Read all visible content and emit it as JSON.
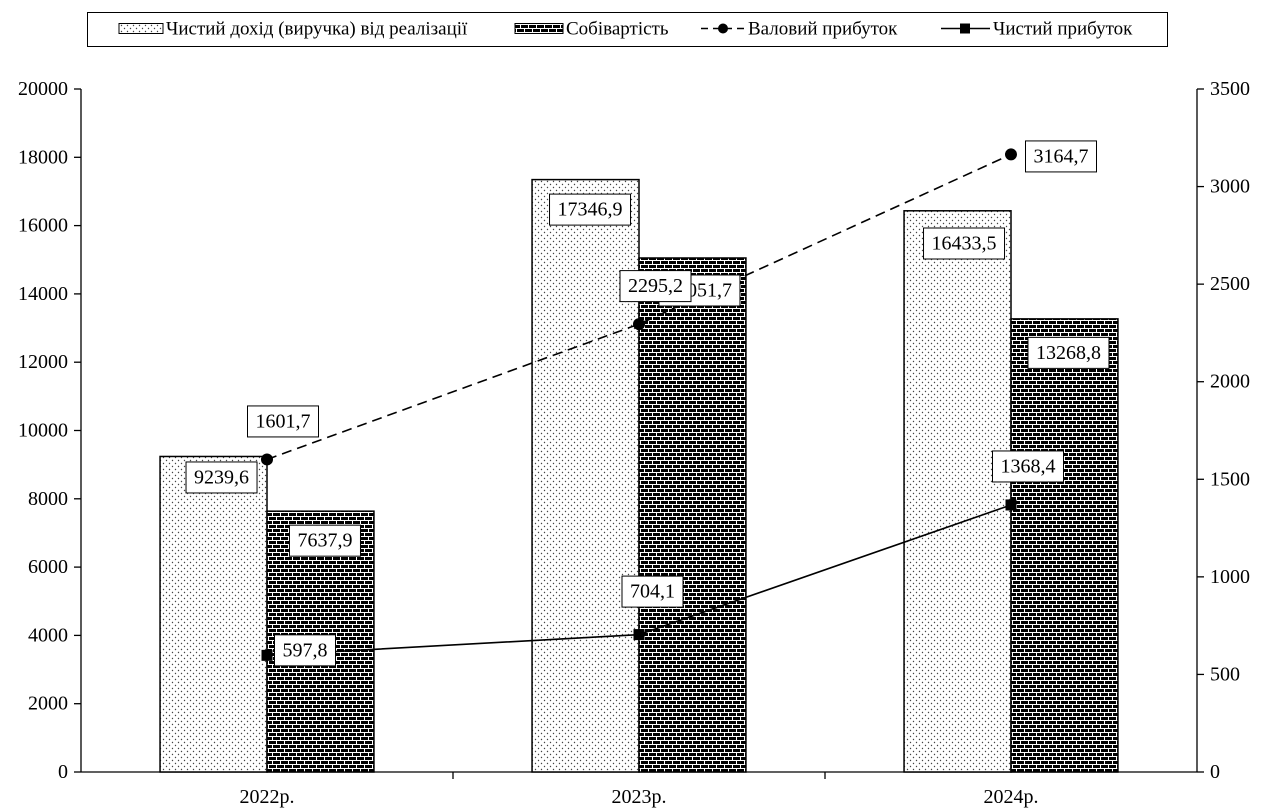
{
  "chart_data": {
    "type": "bar",
    "categories": [
      "2022р.",
      "2023р.",
      "2024р."
    ],
    "series": [
      {
        "name": "Чистий дохід (виручка) від реалізації",
        "type": "bar",
        "y_axis": "left",
        "fill_pattern": "dotted",
        "values": [
          9239.6,
          17346.9,
          16433.5
        ],
        "data_labels": [
          "9239,6",
          "17346,9",
          "16433,5"
        ]
      },
      {
        "name": "Собівартість",
        "type": "bar",
        "y_axis": "left",
        "fill_pattern": "brick",
        "values": [
          7637.9,
          15051.7,
          13268.8
        ],
        "data_labels": [
          "7637,9",
          "15051,7",
          "13268,8"
        ]
      },
      {
        "name": "Валовий прибуток",
        "type": "line",
        "y_axis": "right",
        "line_style": "dashed",
        "marker": "circle",
        "values": [
          1601.7,
          2295.2,
          3164.7
        ],
        "data_labels": [
          "1601,7",
          "2295,2",
          "3164,7"
        ]
      },
      {
        "name": "Чистий прибуток",
        "type": "line",
        "y_axis": "right",
        "line_style": "solid",
        "marker": "square",
        "values": [
          597.8,
          704.1,
          1368.4
        ],
        "data_labels": [
          "597,8",
          "704,1",
          "1368,4"
        ]
      }
    ],
    "y_left": {
      "min": 0,
      "max": 20000,
      "step": 2000,
      "tick_labels": [
        "0",
        "2000",
        "4000",
        "6000",
        "8000",
        "10000",
        "12000",
        "14000",
        "16000",
        "18000",
        "20000"
      ]
    },
    "y_right": {
      "min": 0,
      "max": 3500,
      "step": 500,
      "tick_labels": [
        "0",
        "500",
        "1000",
        "1500",
        "2000",
        "2500",
        "3000",
        "3500"
      ]
    },
    "grid": false,
    "legend_position": "top",
    "colors": {
      "ink": "#000000",
      "background": "#ffffff"
    }
  }
}
